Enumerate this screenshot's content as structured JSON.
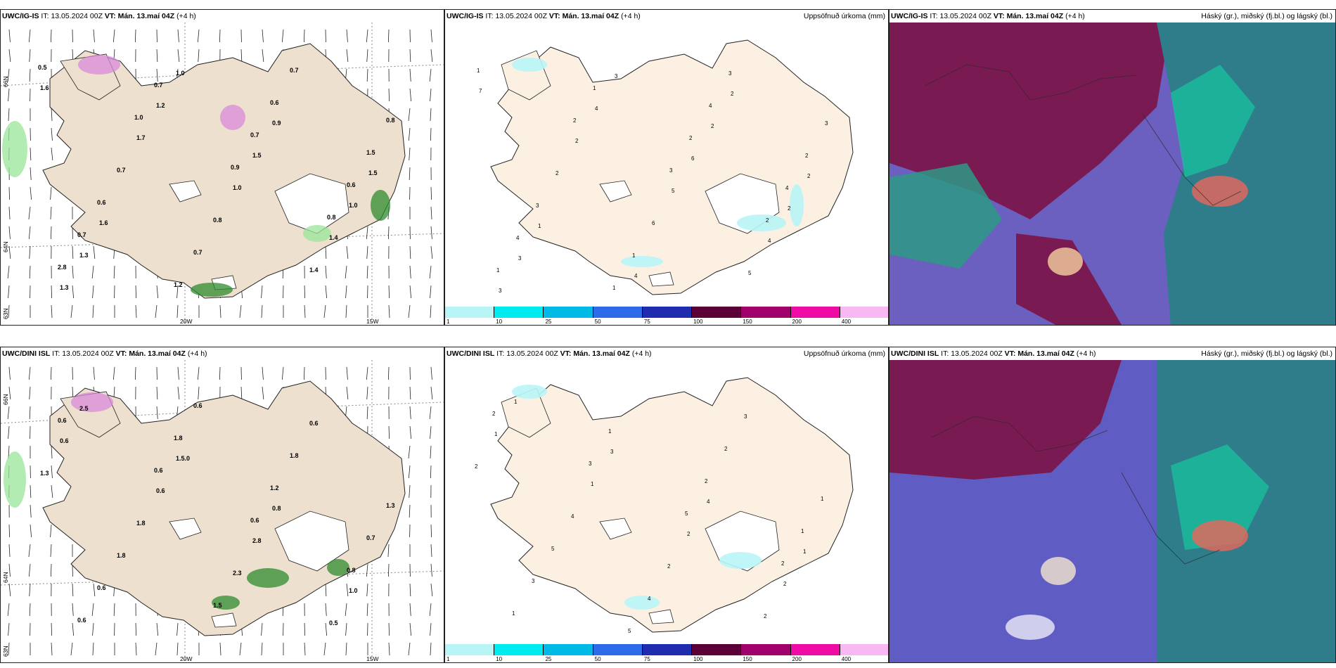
{
  "rows": [
    {
      "model": "UWC/IG-IS",
      "it_label": "IT:",
      "it_value": "13.05.2024 00Z",
      "vt_label": "VT:",
      "vt_value": "Mán. 13.maí 04Z",
      "lead": "(+4 h)"
    },
    {
      "model": "UWC/DINI ISL",
      "it_label": "IT:",
      "it_value": "13.05.2024 00Z",
      "vt_label": "VT:",
      "vt_value": "Mán. 13.maí 04Z",
      "lead": "(+4 h)"
    }
  ],
  "precip_title": "Uppsöfnuð úrkoma (mm)",
  "cloud_title": "Háský (gr.), miðský (fj.bl.) og lágský (bl.)",
  "axis_labels": {
    "lat_66": "66N",
    "lat_64": "64N",
    "lat_63": "63N",
    "lon_20": "20W",
    "lon_15": "15W"
  },
  "colorbar": {
    "ticks": [
      "1",
      "10",
      "25",
      "50",
      "75",
      "100",
      "150",
      "200",
      "400"
    ],
    "colors": [
      "#b9f5f7",
      "#00ebf0",
      "#00b9e6",
      "#2e6be8",
      "#1f2cb0",
      "#5a0037",
      "#a1006b",
      "#f00aa5",
      "#f8b8f2"
    ]
  },
  "top_wind_labels": [
    "0.5",
    "1.0",
    "0.9",
    "0.8",
    "2.8",
    "0.7",
    "0.7",
    "0.6",
    "0.7",
    "1.2",
    "0.6",
    "1.5",
    "0.6",
    "0.7",
    "0.7",
    "0.8",
    "0.7",
    "0.8",
    "1.4",
    "1.6",
    "1.7",
    "1.0",
    "1.4",
    "1.3",
    "1.2",
    "1.5",
    "1.0",
    "1.3",
    "1.0",
    "0.9",
    "1.5",
    "1.6"
  ],
  "bot_wind_labels": [
    "0.6",
    "0.6",
    "0.6",
    "0.8",
    "0.6",
    "1.8",
    "1.2",
    "0.7",
    "0.6",
    "0.6",
    "1.8",
    "1.3",
    "1.8",
    "1.5",
    "0.6",
    "1.3",
    "1.8",
    "2.3",
    "0.5",
    "0.6",
    "0.6",
    "2.8",
    "1.0",
    "2.5",
    "1.5.0",
    "0.8"
  ],
  "top_precip_labels": [
    "1",
    "2",
    "3",
    "2",
    "1",
    "1",
    "2",
    "4",
    "4",
    "1",
    "4",
    "2",
    "3",
    "1",
    "3",
    "3",
    "2",
    "6",
    "5",
    "7",
    "2",
    "5",
    "4",
    "3",
    "4",
    "6",
    "2",
    "3",
    "3",
    "2",
    "2",
    "1",
    "4",
    "2"
  ],
  "bot_precip_labels": [
    "2",
    "3",
    "5",
    "2",
    "1",
    "1",
    "2",
    "1",
    "3",
    "5",
    "2",
    "1",
    "5",
    "4",
    "3",
    "2",
    "4",
    "2",
    "2",
    "1",
    "1",
    "2",
    "2",
    "1",
    "3",
    "4",
    "1"
  ]
}
